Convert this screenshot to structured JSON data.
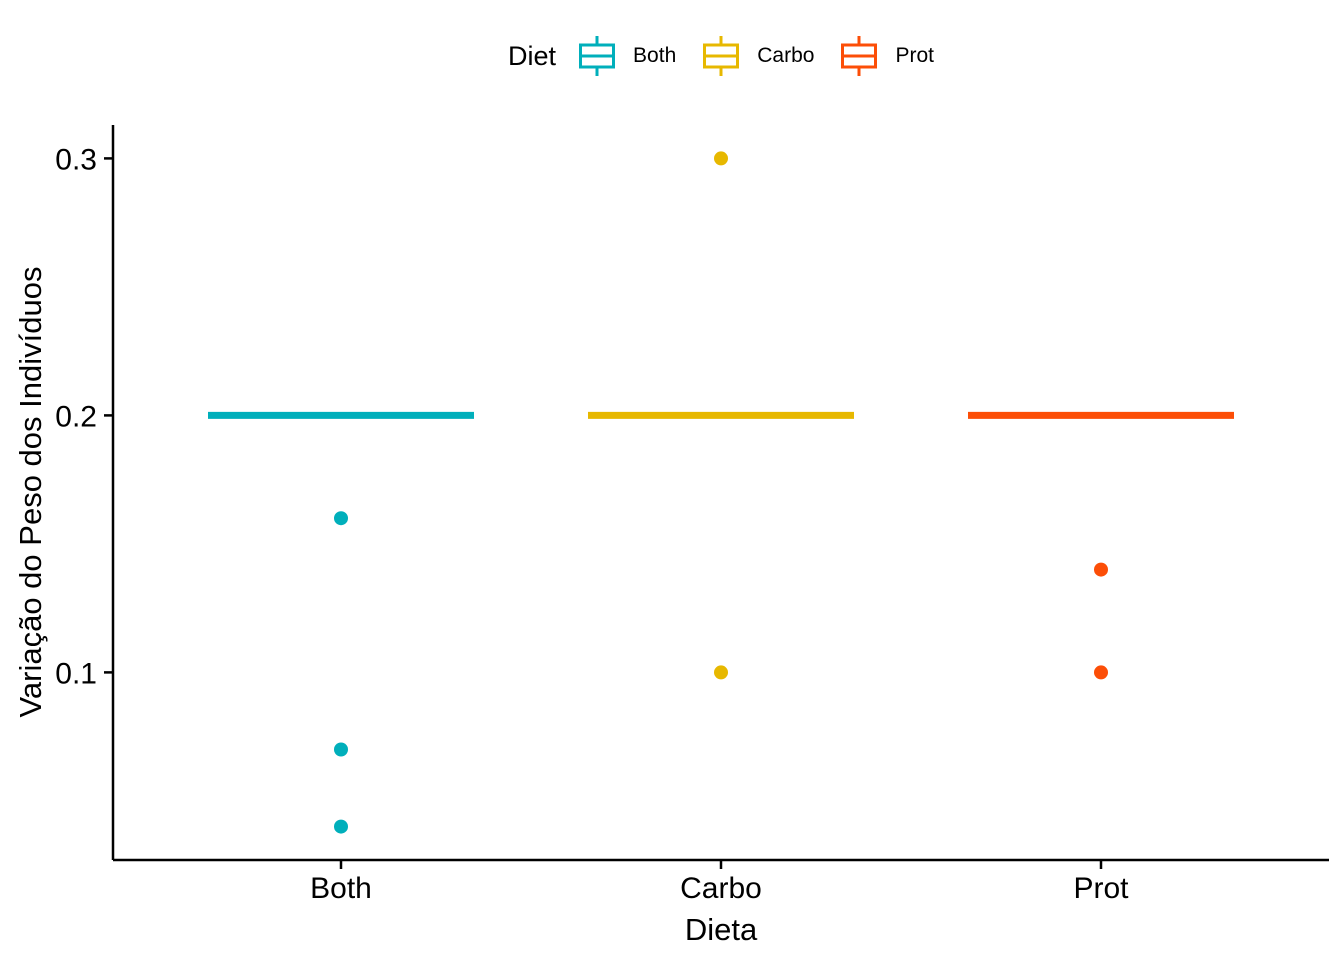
{
  "legend": {
    "title": "Diet",
    "position": "top",
    "entries": [
      {
        "label": "Both",
        "color": "#00AFBB"
      },
      {
        "label": "Carbo",
        "color": "#E7B800"
      },
      {
        "label": "Prot",
        "color": "#FC4E07"
      }
    ]
  },
  "chart_data": {
    "type": "boxplot",
    "title": "",
    "xlabel": "Dieta",
    "ylabel": "Variação do Peso dos Indivíduos",
    "categories": [
      "Both",
      "Carbo",
      "Prot"
    ],
    "y_ticks": [
      0.1,
      0.2,
      0.3
    ],
    "y_tick_labels": [
      "0.1",
      "0.2",
      "0.3"
    ],
    "ylim": [
      0.027,
      0.313
    ],
    "grid": false,
    "legend_position": "top",
    "series": [
      {
        "name": "Both",
        "color": "#00AFBB",
        "whisker_low": 0.2,
        "q1": 0.2,
        "median": 0.2,
        "q3": 0.2,
        "whisker_high": 0.2,
        "outliers": [
          0.16,
          0.07,
          0.04
        ]
      },
      {
        "name": "Carbo",
        "color": "#E7B800",
        "whisker_low": 0.2,
        "q1": 0.2,
        "median": 0.2,
        "q3": 0.2,
        "whisker_high": 0.2,
        "outliers": [
          0.3,
          0.1
        ]
      },
      {
        "name": "Prot",
        "color": "#FC4E07",
        "whisker_low": 0.2,
        "q1": 0.2,
        "median": 0.2,
        "q3": 0.2,
        "whisker_high": 0.2,
        "outliers": [
          0.14,
          0.1
        ]
      }
    ],
    "axis_color": "#000000",
    "text_color": "#000000"
  }
}
